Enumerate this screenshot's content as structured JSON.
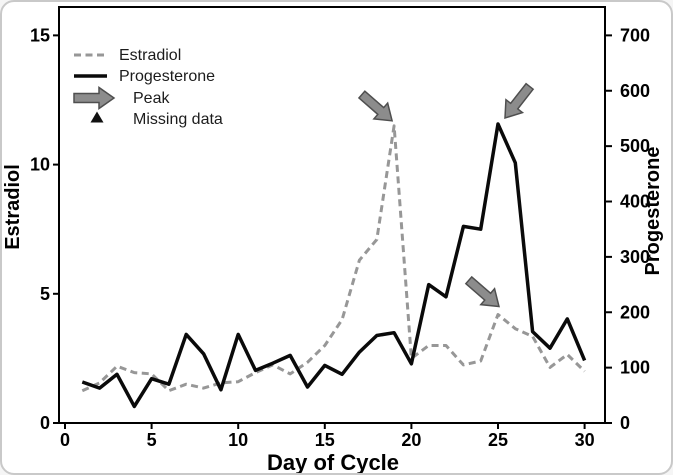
{
  "chart_data": {
    "type": "line",
    "title": "",
    "xlabel": "Day of Cycle",
    "x": [
      1,
      2,
      3,
      4,
      5,
      6,
      7,
      8,
      9,
      10,
      11,
      12,
      13,
      14,
      15,
      16,
      17,
      18,
      19,
      20,
      21,
      22,
      23,
      24,
      25,
      26,
      27,
      28,
      29,
      30
    ],
    "series": [
      {
        "name": "Estradiol",
        "axis": "left",
        "line_style": "dashed",
        "color": "#979797",
        "values": [
          1.25,
          1.55,
          2.2,
          1.95,
          1.9,
          1.25,
          1.5,
          1.35,
          1.55,
          1.6,
          1.95,
          2.25,
          1.9,
          2.35,
          3.0,
          4.0,
          6.3,
          7.1,
          11.5,
          2.5,
          3.0,
          3.0,
          2.25,
          2.4,
          4.2,
          3.65,
          3.35,
          2.15,
          2.65,
          2.0
        ]
      },
      {
        "name": "Progesterone",
        "axis": "right",
        "line_style": "solid",
        "color": "#0a0a0a",
        "values": [
          74,
          63,
          88,
          30,
          80,
          70,
          160,
          125,
          60,
          160,
          95,
          108,
          122,
          65,
          104,
          88,
          128,
          158,
          163,
          107,
          250,
          228,
          355,
          350,
          540,
          470,
          165,
          135,
          188,
          113
        ]
      }
    ],
    "left_axis": {
      "label": "Estradiol",
      "range": [
        0,
        15
      ],
      "ticks": [
        0,
        5,
        10,
        15
      ]
    },
    "right_axis": {
      "label": "Progesterone",
      "range": [
        0,
        700
      ],
      "ticks": [
        0,
        100,
        200,
        300,
        400,
        500,
        600,
        700
      ]
    },
    "x_axis": {
      "label": "Day of Cycle",
      "range": [
        0,
        31.2
      ],
      "ticks": [
        0,
        5,
        10,
        15,
        20,
        25,
        30
      ]
    },
    "grid": false,
    "legend": {
      "position": "top-left",
      "items": [
        {
          "label": "Estradiol",
          "marker": "dashed-line"
        },
        {
          "label": "Progesterone",
          "marker": "solid-line"
        },
        {
          "label": "Peak",
          "marker": "arrow"
        },
        {
          "label": "Missing data",
          "marker": "triangle"
        }
      ]
    },
    "annotations": [
      {
        "type": "peak-arrow",
        "label": "Peak",
        "series": "Estradiol",
        "day": 19,
        "value": 11.5,
        "angle_deg": 41,
        "tip_offset": [
          -2,
          -5
        ]
      },
      {
        "type": "peak-arrow",
        "label": "Peak",
        "series": "Progesterone",
        "day": 25,
        "value": 540,
        "angle_deg": 128,
        "tip_offset": [
          7,
          -6
        ]
      },
      {
        "type": "peak-arrow",
        "label": "Peak",
        "series": "Estradiol",
        "day": 25,
        "value": 4.2,
        "angle_deg": 41,
        "tip_offset": [
          1,
          -8
        ]
      }
    ],
    "colors": {
      "arrow_fill": "#8c8c8c",
      "arrow_stroke": "#4f4f4f",
      "axis": "#000000",
      "figure_border": "#c9c9c9"
    }
  }
}
